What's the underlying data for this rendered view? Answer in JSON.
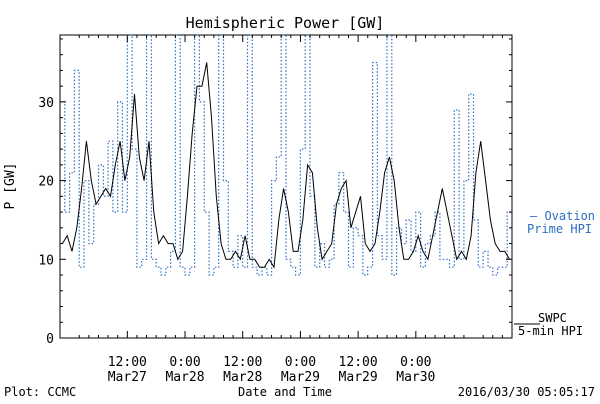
{
  "chart_data": {
    "type": "line",
    "title": "Hemispheric Power [GW]",
    "ylabel": "P [GW]",
    "xlabel": "Date and Time",
    "ylim": [
      0,
      38.5
    ],
    "yticks": [
      0,
      10,
      20,
      30
    ],
    "xlim": [
      0,
      94
    ],
    "x_unit": "hours from 2016-03-26 22:00",
    "xticks": [
      {
        "x": 14,
        "time": "12:00",
        "date": "Mar27"
      },
      {
        "x": 26,
        "time": "0:00",
        "date": "Mar28"
      },
      {
        "x": 38,
        "time": "12:00",
        "date": "Mar28"
      },
      {
        "x": 50,
        "time": "0:00",
        "date": "Mar29"
      },
      {
        "x": 62,
        "time": "12:00",
        "date": "Mar29"
      },
      {
        "x": 74,
        "time": "0:00",
        "date": "Mar30"
      }
    ],
    "series": [
      {
        "name": "SWPC 5-min HPI",
        "style": "solid",
        "color": "#000000",
        "x": [
          0.5,
          1.5,
          2.5,
          3.5,
          4.5,
          5.5,
          6.5,
          7.5,
          8.5,
          9.5,
          10.5,
          11.5,
          12.5,
          13.5,
          14.5,
          15.5,
          16.5,
          17.5,
          18.5,
          19.5,
          20.5,
          21.5,
          22.5,
          23.5,
          24.5,
          25.5,
          26.5,
          27.5,
          28.5,
          29.5,
          30.5,
          31.5,
          32.5,
          33.5,
          34.5,
          35.5,
          36.5,
          37.5,
          38.5,
          39.5,
          40.5,
          41.5,
          42.5,
          43.5,
          44.5,
          45.5,
          46.5,
          47.5,
          48.5,
          49.5,
          50.5,
          51.5,
          52.5,
          53.5,
          54.5,
          55.5,
          56.5,
          57.5,
          58.5,
          59.5,
          60.5,
          61.5,
          62.5,
          63.5,
          64.5,
          65.5,
          66.5,
          67.5,
          68.5,
          69.5,
          70.5,
          71.5,
          72.5,
          73.5,
          74.5,
          75.5,
          76.5,
          77.5,
          78.5,
          79.5,
          80.5,
          81.5,
          82.5,
          83.5,
          84.5,
          85.5,
          86.5,
          87.5,
          88.5,
          89.5,
          90.5,
          91.5,
          92.5,
          93.5
        ],
        "values": [
          12,
          13,
          11,
          14,
          19,
          25,
          20,
          17,
          18,
          19,
          18,
          22,
          25,
          20,
          23,
          31,
          23,
          20,
          25,
          16,
          12,
          13,
          12,
          12,
          10,
          11,
          18,
          26,
          32,
          32,
          35,
          28,
          18,
          12,
          10,
          10,
          11,
          10,
          13,
          10,
          10,
          9,
          9,
          10,
          9,
          15,
          19,
          16,
          11,
          11,
          15,
          22,
          21,
          14,
          10,
          11,
          12,
          17,
          19,
          20,
          14,
          16,
          18,
          12,
          11,
          12,
          16,
          21,
          23,
          20,
          14,
          10,
          10,
          11,
          13,
          11,
          10,
          13,
          16,
          19,
          16,
          13,
          10,
          11,
          10,
          13,
          21,
          25,
          20,
          15,
          12,
          11,
          11,
          10
        ]
      },
      {
        "name": "Ovation Prime HPI",
        "style": "dotted",
        "color": "#2e6fc0",
        "x": [
          0.5,
          1.5,
          2.5,
          3.5,
          4.5,
          5.5,
          6.5,
          7.5,
          8.5,
          9.5,
          10.5,
          11.5,
          12.5,
          13.5,
          14.5,
          15.5,
          16.5,
          17.5,
          18.5,
          19.5,
          20.5,
          21.5,
          22.5,
          23.5,
          24.5,
          25.5,
          26.5,
          27.5,
          28.5,
          29.5,
          30.5,
          31.5,
          32.5,
          33.5,
          34.5,
          35.5,
          36.5,
          37.5,
          38.5,
          39.5,
          40.5,
          41.5,
          42.5,
          43.5,
          44.5,
          45.5,
          46.5,
          47.5,
          48.5,
          49.5,
          50.5,
          51.5,
          52.5,
          53.5,
          54.5,
          55.5,
          56.5,
          57.5,
          58.5,
          59.5,
          60.5,
          61.5,
          62.5,
          63.5,
          64.5,
          65.5,
          66.5,
          67.5,
          68.5,
          69.5,
          70.5,
          71.5,
          72.5,
          73.5,
          74.5,
          75.5,
          76.5,
          77.5,
          78.5,
          79.5,
          80.5,
          81.5,
          82.5,
          83.5,
          84.5,
          85.5,
          86.5,
          87.5,
          88.5,
          89.5,
          90.5,
          91.5,
          92.5,
          93.5
        ],
        "values": [
          30,
          16,
          21,
          34,
          9,
          20,
          12,
          17,
          22,
          18,
          25,
          16,
          30,
          16,
          38.5,
          24,
          9,
          10,
          38.5,
          10,
          9,
          8,
          9,
          11,
          38.5,
          9,
          8,
          9,
          38.5,
          30,
          16,
          8,
          9,
          38.5,
          20,
          11,
          9,
          13,
          9,
          38.5,
          9,
          8,
          9,
          8,
          20,
          23,
          38.5,
          10,
          9,
          8,
          24,
          38.5,
          18,
          9,
          12,
          9,
          10,
          17,
          21,
          16,
          9,
          14,
          13,
          8,
          9,
          35,
          13,
          10,
          38.5,
          8,
          14,
          12,
          15,
          11,
          16,
          9,
          12,
          13,
          16,
          10,
          10,
          9,
          29,
          10,
          20,
          31,
          15,
          9,
          11,
          9,
          8,
          9,
          9,
          16
        ]
      }
    ],
    "legend": "right",
    "grid": false
  },
  "legend": {
    "ovation_line1": "– Ovation",
    "ovation_line2": "Prime HPI",
    "swpc_line1": "SWPC",
    "swpc_line2": "5-min HPI"
  },
  "footer": {
    "left": "Plot: CCMC",
    "right": "2016/03/30 05:05:17"
  },
  "colors": {
    "ovation": "#2e6fc0",
    "swpc": "#000000"
  }
}
